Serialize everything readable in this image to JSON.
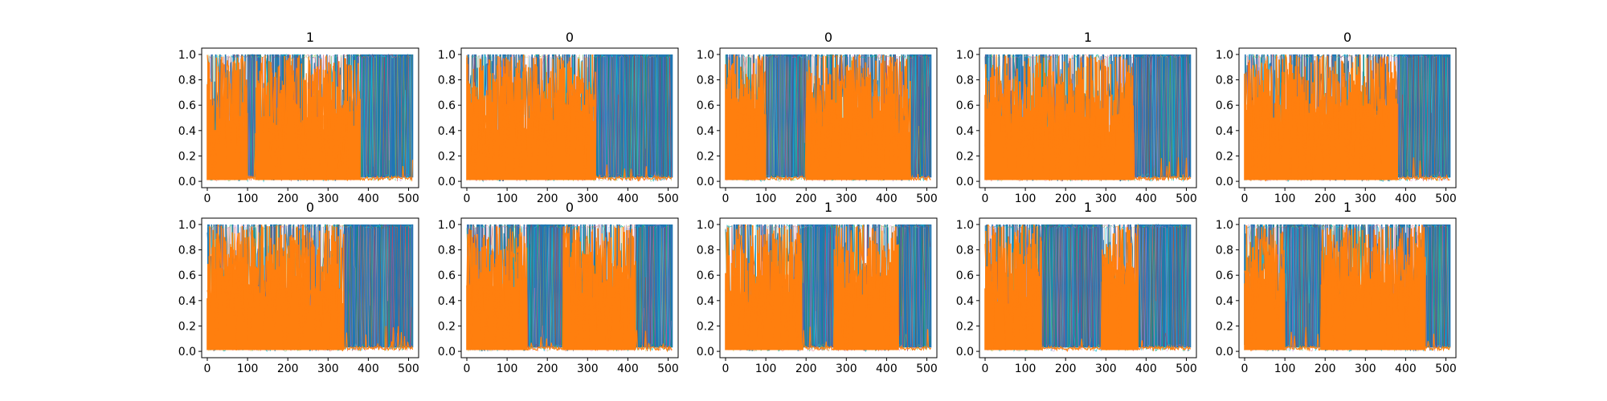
{
  "figure": {
    "background": "#ffffff"
  },
  "chart_data": {
    "type": "line",
    "layout": "2x5 small multiples",
    "x_ticks": [
      0,
      100,
      200,
      300,
      400,
      500
    ],
    "y_ticks": [
      0.0,
      0.2,
      0.4,
      0.6,
      0.8,
      1.0
    ],
    "x_tick_labels": [
      "0",
      "100",
      "200",
      "300",
      "400",
      "500"
    ],
    "y_tick_labels": [
      "0.0",
      "0.2",
      "0.4",
      "0.6",
      "0.8",
      "1.0"
    ],
    "xlim": [
      -14,
      525
    ],
    "ylim": [
      -0.05,
      1.05
    ],
    "grid": false,
    "series_colors": {
      "blue": "#1f77b4",
      "orange": "#ff7f0e",
      "cyan": "#17becf",
      "olive": "#bcbd22",
      "green": "#2ca02c",
      "purple": "#9467bd",
      "pink": "#e377c2",
      "red": "#d62728"
    },
    "panels": [
      {
        "title": "1",
        "orange_segments": [
          [
            0,
            100
          ],
          [
            120,
            380
          ]
        ]
      },
      {
        "title": "0",
        "orange_segments": [
          [
            0,
            320
          ]
        ]
      },
      {
        "title": "0",
        "orange_segments": [
          [
            0,
            100
          ],
          [
            200,
            460
          ]
        ]
      },
      {
        "title": "1",
        "orange_segments": [
          [
            0,
            370
          ]
        ]
      },
      {
        "title": "0",
        "orange_segments": [
          [
            0,
            380
          ]
        ]
      },
      {
        "title": "0",
        "orange_segments": [
          [
            0,
            340
          ]
        ]
      },
      {
        "title": "0",
        "orange_segments": [
          [
            0,
            150
          ],
          [
            240,
            420
          ]
        ]
      },
      {
        "title": "1",
        "orange_segments": [
          [
            0,
            190
          ],
          [
            270,
            430
          ]
        ]
      },
      {
        "title": "1",
        "orange_segments": [
          [
            0,
            140
          ],
          [
            290,
            380
          ]
        ]
      },
      {
        "title": "1",
        "orange_segments": [
          [
            0,
            100
          ],
          [
            190,
            450
          ]
        ]
      }
    ]
  }
}
